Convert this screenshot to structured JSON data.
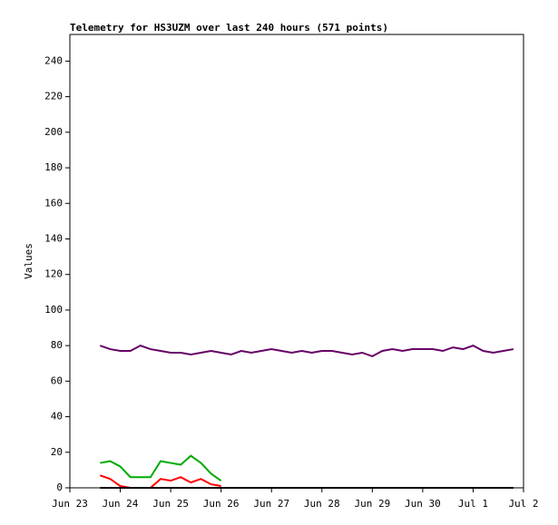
{
  "chart_data": {
    "type": "line",
    "title": "Telemetry for HS3UZM over last 240 hours (571 points)",
    "y_label": "Values",
    "x": [
      0.6,
      0.8,
      1.0,
      1.2,
      1.4,
      1.6,
      1.8,
      2.0,
      2.2,
      2.4,
      2.6,
      2.8,
      3.0,
      3.2,
      3.4,
      3.6,
      3.8,
      4.0,
      4.2,
      4.4,
      4.6,
      4.8,
      5.0,
      5.2,
      5.4,
      5.6,
      5.8,
      6.0,
      6.2,
      6.4,
      6.6,
      6.8,
      7.0,
      7.2,
      7.4,
      7.6,
      7.8,
      8.0,
      8.2,
      8.4,
      8.6,
      8.8
    ],
    "series": [
      {
        "color": "#660066",
        "values": [
          80,
          78,
          77,
          77,
          80,
          78,
          77,
          76,
          76,
          75,
          76,
          77,
          76,
          75,
          77,
          76,
          77,
          78,
          77,
          76,
          77,
          76,
          77,
          77,
          76,
          75,
          76,
          74,
          77,
          78,
          77,
          78,
          78,
          78,
          77,
          79,
          78,
          80,
          77,
          76,
          77,
          78
        ]
      },
      {
        "color": "#00aa00",
        "values": [
          14,
          15,
          12,
          6,
          6,
          6,
          15,
          14,
          13,
          18,
          14,
          8,
          4,
          null,
          null,
          null,
          null,
          null,
          null,
          null,
          null,
          null,
          null,
          null,
          null,
          null,
          null,
          null,
          null,
          null,
          null,
          null,
          null,
          null,
          null,
          null,
          null,
          null,
          null,
          null,
          null,
          null
        ]
      },
      {
        "color": "#ff0000",
        "values": [
          7,
          5,
          1,
          0,
          0,
          0,
          5,
          4,
          6,
          3,
          5,
          2,
          1,
          null,
          null,
          null,
          null,
          null,
          null,
          null,
          null,
          null,
          null,
          null,
          null,
          null,
          null,
          null,
          null,
          null,
          null,
          null,
          null,
          null,
          null,
          null,
          null,
          null,
          null,
          null,
          null,
          null
        ]
      },
      {
        "color": "#000000",
        "values": [
          0,
          0,
          0,
          0,
          0,
          0,
          0,
          0,
          0,
          0,
          0,
          0,
          0,
          0,
          0,
          0,
          0,
          0,
          0,
          0,
          0,
          0,
          0,
          0,
          0,
          0,
          0,
          0,
          0,
          0,
          0,
          0,
          0,
          0,
          0,
          0,
          0,
          0,
          0,
          0,
          0,
          0
        ]
      }
    ],
    "xlim": [
      0,
      9
    ],
    "xticks": [
      {
        "value": 0,
        "label": "Jun 23"
      },
      {
        "value": 1,
        "label": "Jun 24"
      },
      {
        "value": 2,
        "label": "Jun 25"
      },
      {
        "value": 3,
        "label": "Jun 26"
      },
      {
        "value": 4,
        "label": "Jun 27"
      },
      {
        "value": 5,
        "label": "Jun 28"
      },
      {
        "value": 6,
        "label": "Jun 29"
      },
      {
        "value": 7,
        "label": "Jun 30"
      },
      {
        "value": 8,
        "label": "Jul 1"
      },
      {
        "value": 9,
        "label": "Jul 2"
      }
    ],
    "ylim": [
      0,
      255
    ],
    "yticks": [
      0,
      20,
      40,
      60,
      80,
      100,
      120,
      140,
      160,
      180,
      200,
      220,
      240
    ]
  }
}
